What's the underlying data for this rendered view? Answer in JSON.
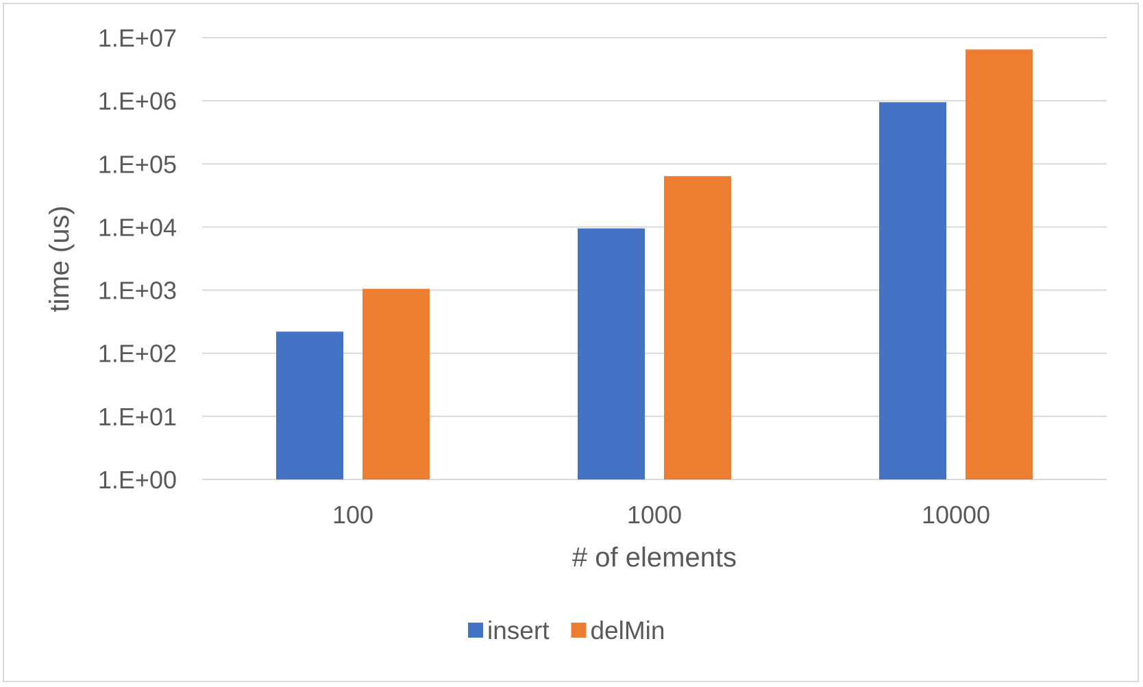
{
  "chart_data": {
    "type": "bar",
    "categories": [
      "100",
      "1000",
      "10000"
    ],
    "series": [
      {
        "name": "insert",
        "values": [
          220,
          9500,
          950000
        ],
        "color": "#4472C4"
      },
      {
        "name": "delMin",
        "values": [
          1050,
          64000,
          6500000
        ],
        "color": "#ED7D31"
      }
    ],
    "xlabel": "# of elements",
    "ylabel": "time (us)",
    "yscale": "log",
    "ylim": [
      1,
      10000000
    ],
    "yticks": [
      1,
      10,
      100,
      1000,
      10000,
      100000,
      1000000,
      10000000
    ],
    "ytick_labels": [
      "1.E+00",
      "1.E+01",
      "1.E+02",
      "1.E+03",
      "1.E+04",
      "1.E+05",
      "1.E+06",
      "1.E+07"
    ],
    "grid": true,
    "gridline_color": "#d9d9d9",
    "legend_position": "bottom"
  }
}
